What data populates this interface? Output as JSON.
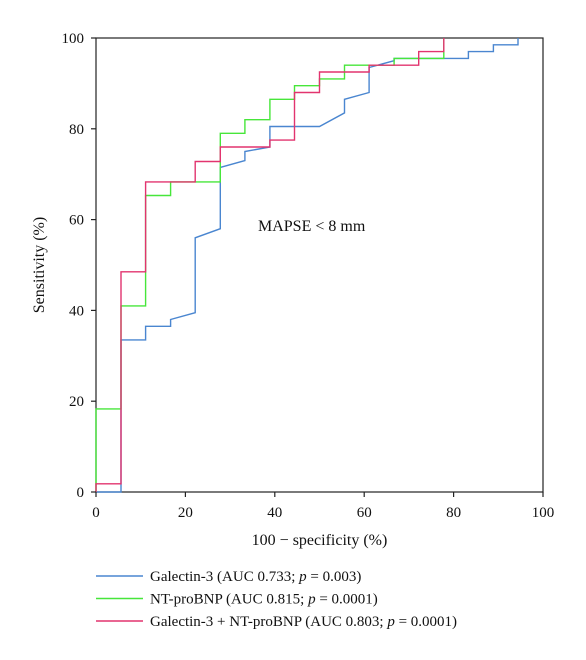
{
  "chart_data": {
    "type": "line",
    "subtype": "roc-step",
    "annotation": "MAPSE < 8 mm",
    "xlabel": "100 − specificity (%)",
    "ylabel": "Sensitivity (%)",
    "xlim": [
      0,
      100
    ],
    "ylim": [
      0,
      100
    ],
    "xticks": [
      0,
      20,
      40,
      60,
      80,
      100
    ],
    "yticks": [
      0,
      20,
      40,
      60,
      80,
      100
    ],
    "grid": false,
    "legend_position": "bottom",
    "series": [
      {
        "name": "Galectin-3",
        "legend_parts": [
          "Galectin-3 (AUC 0.733; ",
          "p",
          " = 0.003)"
        ],
        "color": "#4a86d0",
        "x": [
          0,
          5.6,
          5.6,
          11.1,
          11.1,
          16.7,
          16.7,
          22.2,
          22.2,
          27.8,
          27.8,
          33.3,
          33.3,
          38.9,
          38.9,
          50.0,
          55.6,
          55.6,
          61.1,
          61.1,
          66.7,
          66.7,
          77.8,
          83.3,
          83.3,
          88.9,
          88.9,
          94.4,
          94.4
        ],
        "y": [
          0,
          0,
          33.5,
          33.5,
          36.5,
          36.5,
          38,
          39.5,
          56,
          58,
          71.5,
          73,
          75,
          76,
          80.5,
          80.5,
          83.5,
          86.5,
          88,
          93.5,
          95,
          95.5,
          95.5,
          95.5,
          97,
          97,
          98.5,
          98.5,
          100
        ]
      },
      {
        "name": "NT-proBNP",
        "legend_parts": [
          "NT-proBNP (AUC 0.815; ",
          "p",
          " = 0.0001)"
        ],
        "color": "#47e63a",
        "x": [
          0,
          0,
          5.6,
          5.6,
          11.1,
          11.1,
          16.7,
          16.7,
          27.8,
          27.8,
          33.3,
          33.3,
          38.9,
          38.9,
          44.4,
          44.4,
          50.0,
          50.0,
          55.6,
          55.6,
          61.1,
          61.1,
          66.7,
          66.7,
          77.8,
          77.8
        ],
        "y": [
          0,
          18.3,
          18.3,
          41,
          41,
          65.3,
          65.3,
          68.3,
          68.3,
          79,
          79,
          82,
          82,
          86.5,
          86.5,
          89.5,
          89.5,
          91,
          91,
          94,
          94,
          94,
          94,
          95.5,
          95.5,
          100
        ]
      },
      {
        "name": "Galectin-3 + NT-proBNP",
        "legend_parts": [
          "Galectin-3 + NT-proBNP (AUC 0.803; ",
          "p",
          " = 0.0001)"
        ],
        "color": "#e2346f",
        "x": [
          0,
          0,
          5.6,
          5.6,
          11.1,
          11.1,
          22.2,
          22.2,
          27.8,
          27.8,
          38.9,
          38.9,
          44.4,
          44.4,
          50.0,
          50.0,
          61.1,
          61.1,
          72.2,
          72.2,
          77.8,
          77.8
        ],
        "y": [
          0,
          1.8,
          1.8,
          48.5,
          48.5,
          68.3,
          68.3,
          72.8,
          72.8,
          76,
          76,
          77.5,
          77.5,
          88,
          88,
          92.5,
          92.5,
          94,
          94,
          97,
          97,
          100
        ]
      }
    ]
  }
}
